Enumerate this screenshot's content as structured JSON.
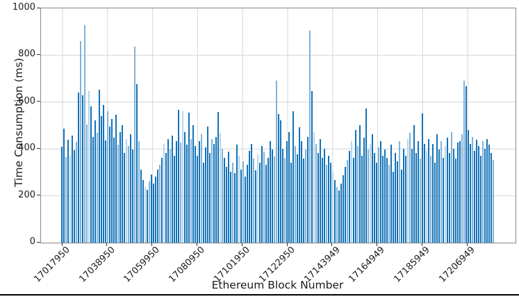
{
  "chart_data": {
    "type": "bar",
    "title": "",
    "xlabel": "Ethereum Block Number",
    "ylabel": "Time Consumption (ms)",
    "ylim": [
      0,
      1000
    ],
    "y_ticks": [
      0,
      200,
      400,
      600,
      800,
      1000
    ],
    "x_tick_labels": [
      "17017950",
      "17038950",
      "17059950",
      "17080950",
      "17101950",
      "17122950",
      "17143949",
      "17164949",
      "17185949",
      "17206949"
    ],
    "grid": true,
    "legend": false,
    "values_unit": "ms",
    "values": [
      410,
      487,
      365,
      440,
      372,
      458,
      395,
      430,
      642,
      862,
      628,
      930,
      505,
      648,
      583,
      452,
      522,
      468,
      653,
      540,
      588,
      435,
      562,
      495,
      528,
      448,
      545,
      418,
      472,
      502,
      382,
      442,
      412,
      462,
      398,
      838,
      678,
      432,
      312,
      268,
      238,
      226,
      262,
      292,
      252,
      282,
      312,
      332,
      362,
      422,
      382,
      442,
      402,
      458,
      372,
      432,
      568,
      428,
      562,
      472,
      418,
      556,
      442,
      502,
      412,
      372,
      432,
      462,
      342,
      408,
      496,
      382,
      442,
      422,
      452,
      558,
      468,
      402,
      362,
      322,
      388,
      302,
      342,
      298,
      418,
      372,
      312,
      348,
      282,
      332,
      392,
      422,
      358,
      308,
      378,
      342,
      412,
      388,
      332,
      362,
      432,
      398,
      368,
      692,
      548,
      522,
      402,
      362,
      432,
      472,
      342,
      562,
      412,
      378,
      492,
      432,
      358,
      398,
      452,
      905,
      648,
      472,
      422,
      382,
      442,
      362,
      402,
      332,
      372,
      342,
      302,
      268,
      238,
      222,
      252,
      288,
      322,
      352,
      392,
      432,
      362,
      482,
      412,
      502,
      372,
      448,
      572,
      398,
      422,
      462,
      382,
      342,
      408,
      432,
      372,
      398,
      362,
      332,
      418,
      302,
      382,
      348,
      432,
      312,
      402,
      372,
      442,
      468,
      402,
      502,
      382,
      432,
      358,
      552,
      422,
      392,
      442,
      372,
      422,
      342,
      462,
      398,
      432,
      362,
      412,
      448,
      382,
      472,
      402,
      358,
      428,
      432,
      462,
      692,
      668,
      482,
      422,
      452,
      392,
      438,
      412,
      372,
      432,
      402,
      442,
      418,
      382,
      352
    ],
    "style": {
      "bar_color": "#1172b8",
      "bar_color_light": "#7fb2d9",
      "bar_color_lighter": "#b7d4ea",
      "grid_color": "#d6d6d6",
      "spine_color": "#888888",
      "text_color": "#1a1a1a",
      "divider_color": "#000000"
    }
  }
}
